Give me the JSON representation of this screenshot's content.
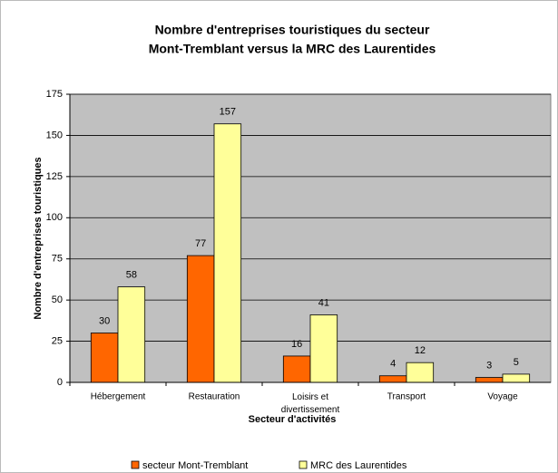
{
  "chart_data": {
    "type": "bar",
    "title": [
      "Nombre d'entreprises touristiques du secteur",
      "Mont-Tremblant versus la MRC des Laurentides"
    ],
    "x_label": "Secteur d'activités",
    "y_label": "Nombre d'entreprises touristiques",
    "categories": [
      "Hébergement",
      "Restauration",
      "Loisirs et divertissement",
      "Transport",
      "Voyage"
    ],
    "series": [
      {
        "name": "secteur Mont-Tremblant",
        "color": "#ff6600",
        "values": [
          30,
          77,
          16,
          4,
          3
        ]
      },
      {
        "name": "MRC des Laurentides",
        "color": "#ffff99",
        "values": [
          58,
          157,
          41,
          12,
          5
        ]
      }
    ],
    "ylim": [
      0,
      175
    ],
    "yticks": [
      0,
      25,
      50,
      75,
      100,
      125,
      150,
      175
    ],
    "grid": true,
    "legend": "bottom"
  }
}
